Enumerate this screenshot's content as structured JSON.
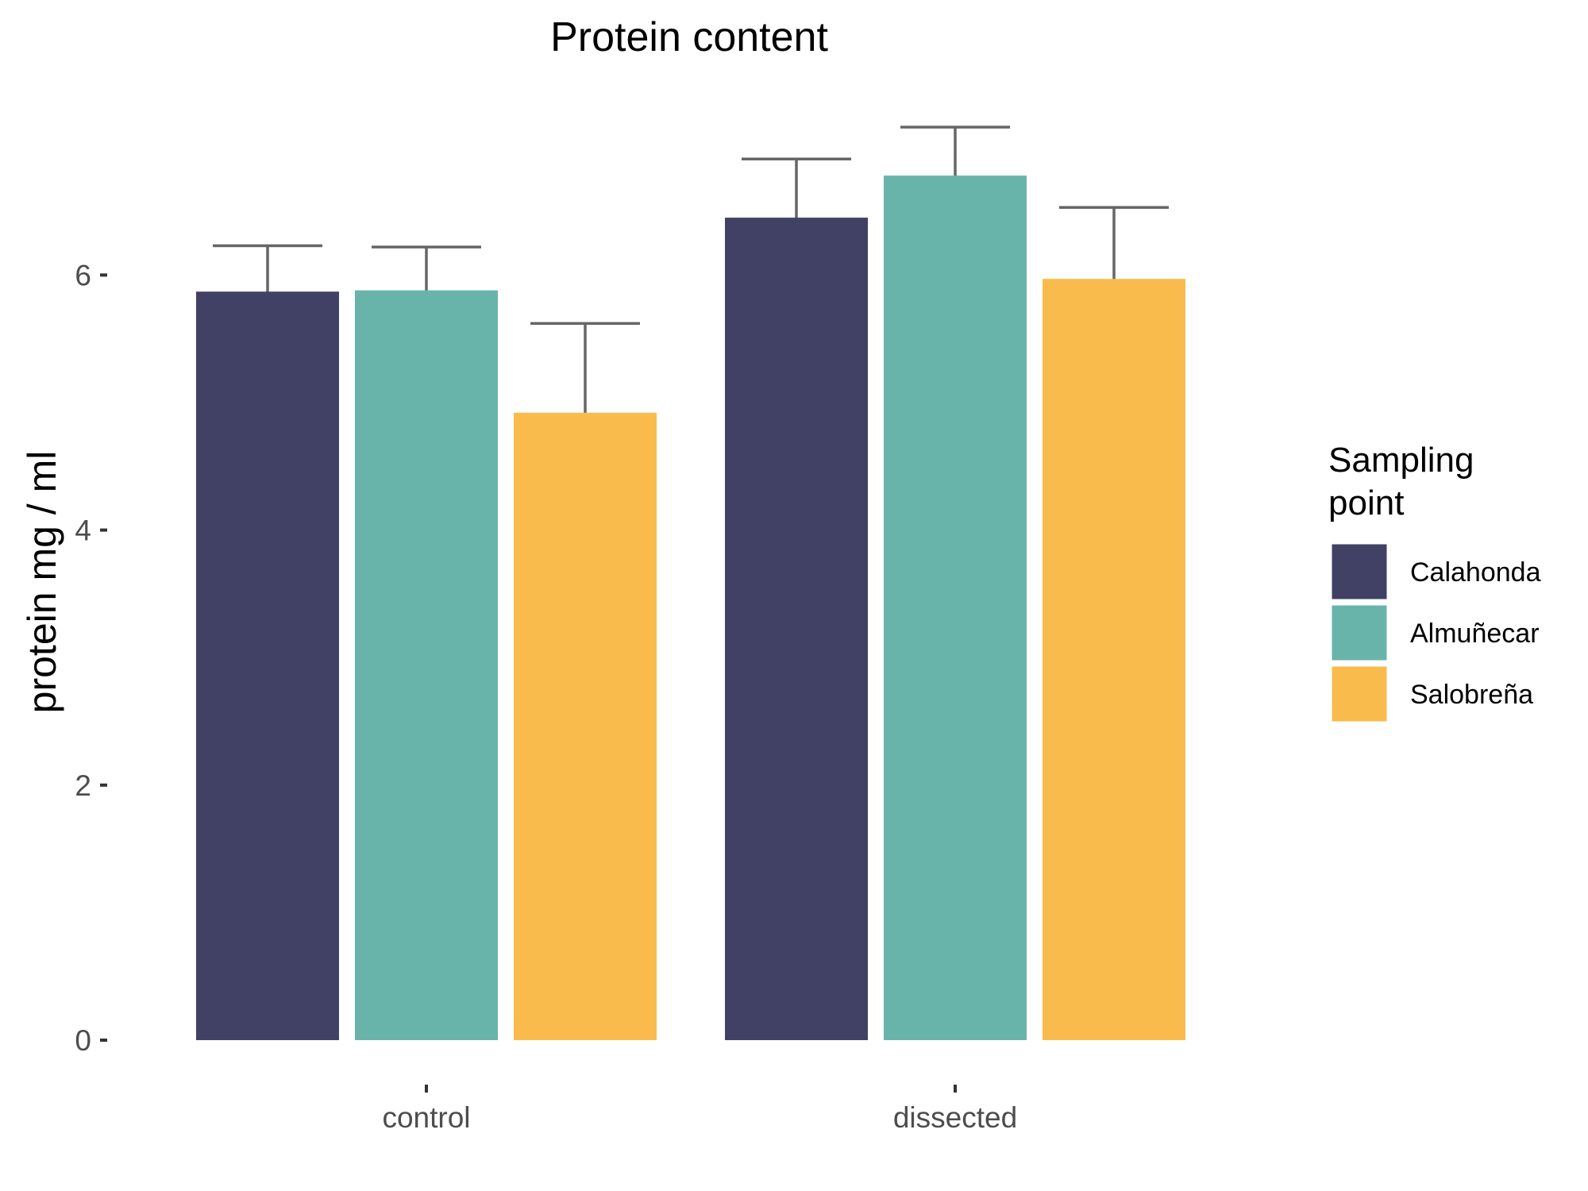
{
  "chart_data": {
    "type": "bar",
    "title": "Protein content",
    "xlabel": "",
    "ylabel": "protein mg / ml",
    "ylim": [
      0,
      7.9
    ],
    "yticks": [
      0,
      2,
      4,
      6
    ],
    "grid": false,
    "legend_placement": "right",
    "legend_title_lines": [
      "Sampling",
      "point"
    ],
    "categories": [
      "control",
      "dissected"
    ],
    "series": [
      {
        "name": "Calahonda",
        "color": "#414165",
        "values": [
          5.87,
          6.45
        ],
        "err": [
          0.36,
          0.46
        ]
      },
      {
        "name": "Almuñecar",
        "color": "#69b4aa",
        "values": [
          5.88,
          6.78
        ],
        "err": [
          0.34,
          0.38
        ]
      },
      {
        "name": "Salobreña",
        "color": "#fabb4d",
        "values": [
          4.92,
          5.97
        ],
        "err": [
          0.7,
          0.56
        ]
      }
    ],
    "errorbar_color": "#666666"
  }
}
